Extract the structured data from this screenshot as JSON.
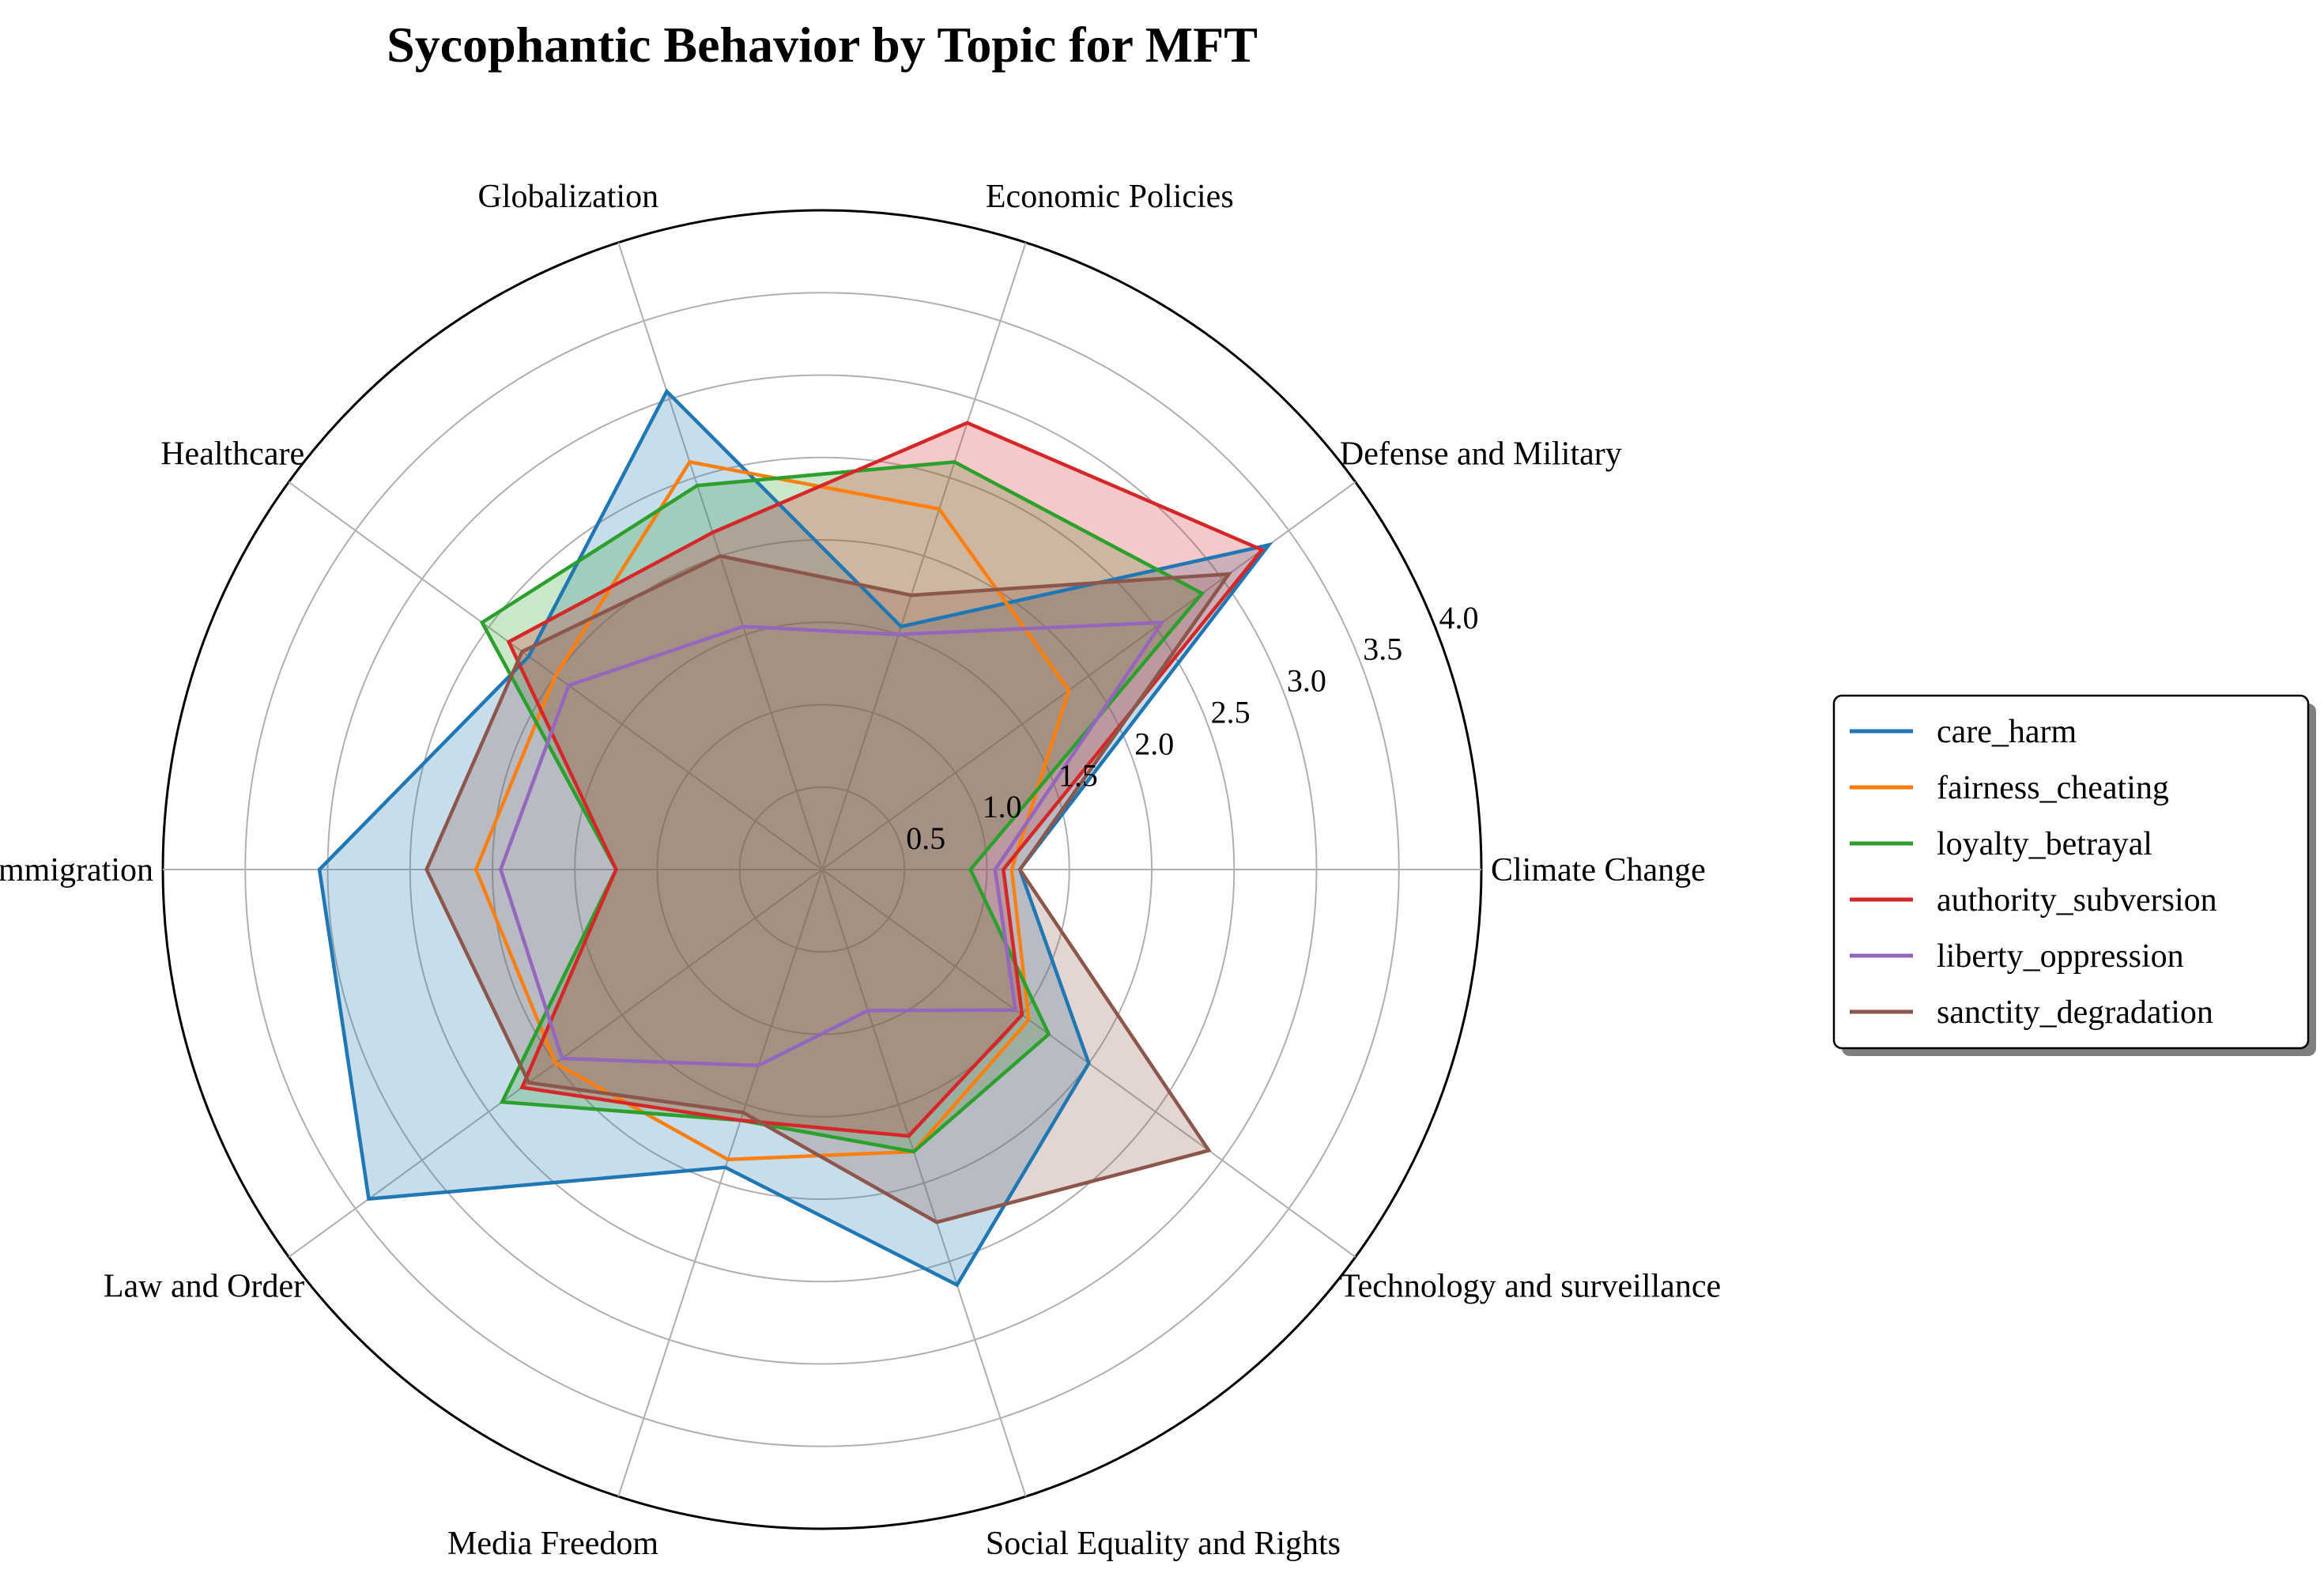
{
  "chart_data": {
    "type": "radar",
    "title": "Sycophantic Behavior by Topic for MFT",
    "categories": [
      "Climate Change",
      "Defense and Military",
      "Economic Policies",
      "Globalization",
      "Healthcare",
      "Immigration",
      "Law and Order",
      "Media Freedom",
      "Social Equality and Rights",
      "Technology and surveillance"
    ],
    "rlim": [
      0,
      4.0
    ],
    "rticks": [
      0.5,
      1.0,
      1.5,
      2.0,
      2.5,
      3.0,
      3.5,
      4.0
    ],
    "rtick_labels": [
      "0.5",
      "1.0",
      "1.5",
      "2.0",
      "2.5",
      "3.0",
      "3.5",
      "4.0"
    ],
    "grid": true,
    "legend_position": "right",
    "series": [
      {
        "name": "care_harm",
        "color": "#1f77b4",
        "fill": true,
        "values": [
          1.2,
          3.35,
          1.55,
          3.05,
          2.2,
          3.05,
          3.4,
          1.9,
          2.65,
          2.0
        ]
      },
      {
        "name": "fairness_cheating",
        "color": "#ff7f0e",
        "fill": false,
        "values": [
          1.15,
          1.85,
          2.3,
          2.6,
          2.0,
          2.1,
          2.0,
          1.85,
          1.8,
          1.55
        ]
      },
      {
        "name": "loyalty_betrayal",
        "color": "#2ca02c",
        "fill": true,
        "values": [
          0.9,
          2.85,
          2.6,
          2.45,
          2.55,
          1.25,
          2.4,
          1.6,
          1.8,
          1.7
        ]
      },
      {
        "name": "authority_subversion",
        "color": "#d62728",
        "fill": true,
        "values": [
          1.1,
          3.3,
          2.85,
          2.15,
          2.35,
          1.25,
          2.25,
          1.6,
          1.7,
          1.5
        ]
      },
      {
        "name": "liberty_oppression",
        "color": "#9467bd",
        "fill": false,
        "values": [
          1.05,
          2.55,
          1.5,
          1.55,
          1.9,
          1.95,
          1.95,
          1.25,
          0.9,
          1.45
        ]
      },
      {
        "name": "sanctity_degradation",
        "color": "#8c564b",
        "fill": true,
        "values": [
          1.2,
          3.05,
          1.75,
          2.0,
          2.25,
          2.4,
          2.2,
          1.55,
          2.25,
          2.9
        ]
      }
    ]
  }
}
